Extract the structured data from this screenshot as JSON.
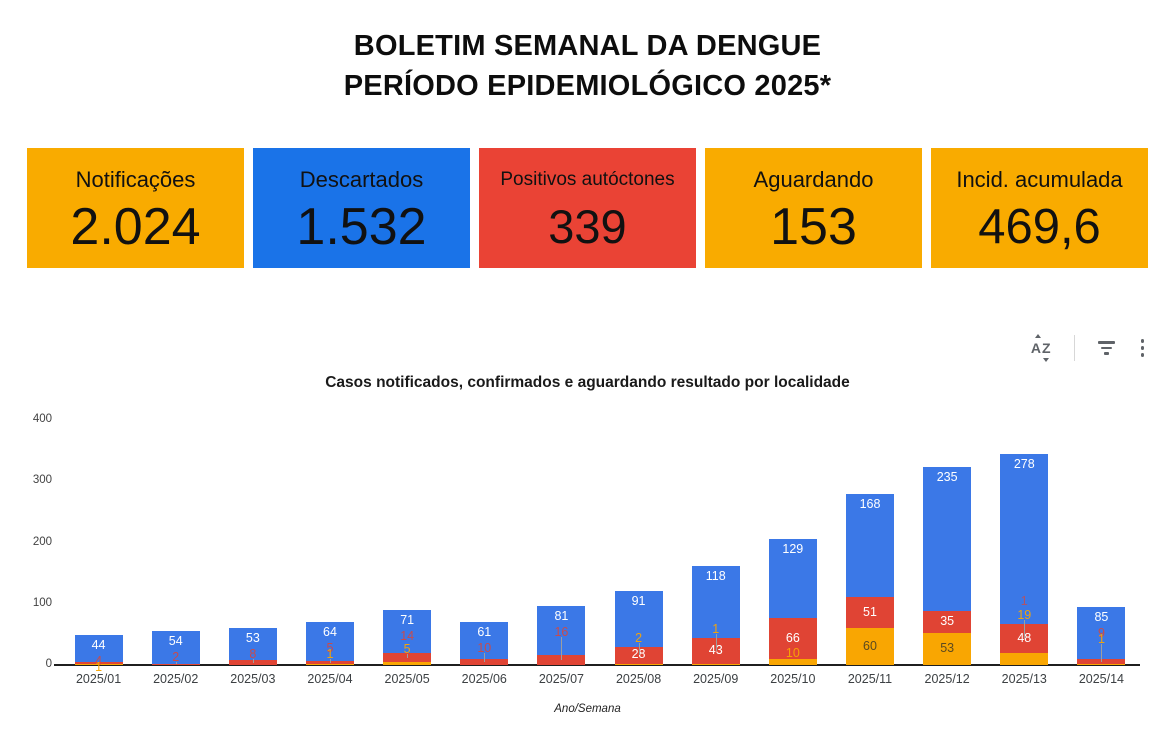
{
  "header": {
    "title_line1": "BOLETIM SEMANAL DA DENGUE",
    "title_line2": "PERÍODO EPIDEMIOLÓGICO 2025*"
  },
  "kpi_cards": [
    {
      "label": "Notificações",
      "value": "2.024",
      "bg": "#F9AB00"
    },
    {
      "label": "Descartados",
      "value": "1.532",
      "bg": "#1A73E8"
    },
    {
      "label": "Positivos autóctones",
      "value": "339",
      "bg": "#EA4335"
    },
    {
      "label": "Aguardando",
      "value": "153",
      "bg": "#F9AB00"
    },
    {
      "label": "Incid. acumulada",
      "value": "469,6",
      "bg": "#F9AB00"
    }
  ],
  "toolbar": {
    "sort_icon_text": "AZ",
    "icons": [
      "sort-az",
      "filter",
      "more-vertical"
    ]
  },
  "chart_data": {
    "type": "bar",
    "stacked": true,
    "title": "Casos notificados, confirmados e aguardando resultado por localidade",
    "xlabel": "Ano/Semana",
    "ylabel": "",
    "ylim": [
      0,
      400
    ],
    "yticks": [
      0,
      100,
      200,
      300,
      400
    ],
    "grid": false,
    "legend": "none",
    "categories": [
      "2025/01",
      "2025/02",
      "2025/03",
      "2025/04",
      "2025/05",
      "2025/06",
      "2025/07",
      "2025/08",
      "2025/09",
      "2025/10",
      "2025/11",
      "2025/12",
      "2025/13",
      "2025/14"
    ],
    "stack_order_bottom_to_top": [
      "Aguardando",
      "Positivos",
      "Descartados"
    ],
    "series": [
      {
        "name": "Descartados",
        "color": "#3B78E7",
        "values": [
          44,
          54,
          53,
          64,
          71,
          61,
          81,
          91,
          118,
          129,
          168,
          235,
          278,
          85
        ]
      },
      {
        "name": "Positivos",
        "color": "#E04434",
        "values": [
          4,
          2,
          8,
          5,
          14,
          10,
          16,
          28,
          43,
          66,
          51,
          35,
          48,
          9
        ]
      },
      {
        "name": "Aguardando",
        "color": "#F9A602",
        "values": [
          1,
          0,
          0,
          1,
          5,
          0,
          0,
          2,
          1,
          10,
          60,
          53,
          19,
          1
        ]
      }
    ],
    "extra_leader_labels": [
      {
        "category": "2025/13",
        "text": "1"
      }
    ],
    "label_colors": {
      "inside_light": "#ffffff",
      "inside_dark": "#5b4a21",
      "leader_line": "#9e9e9e"
    }
  }
}
